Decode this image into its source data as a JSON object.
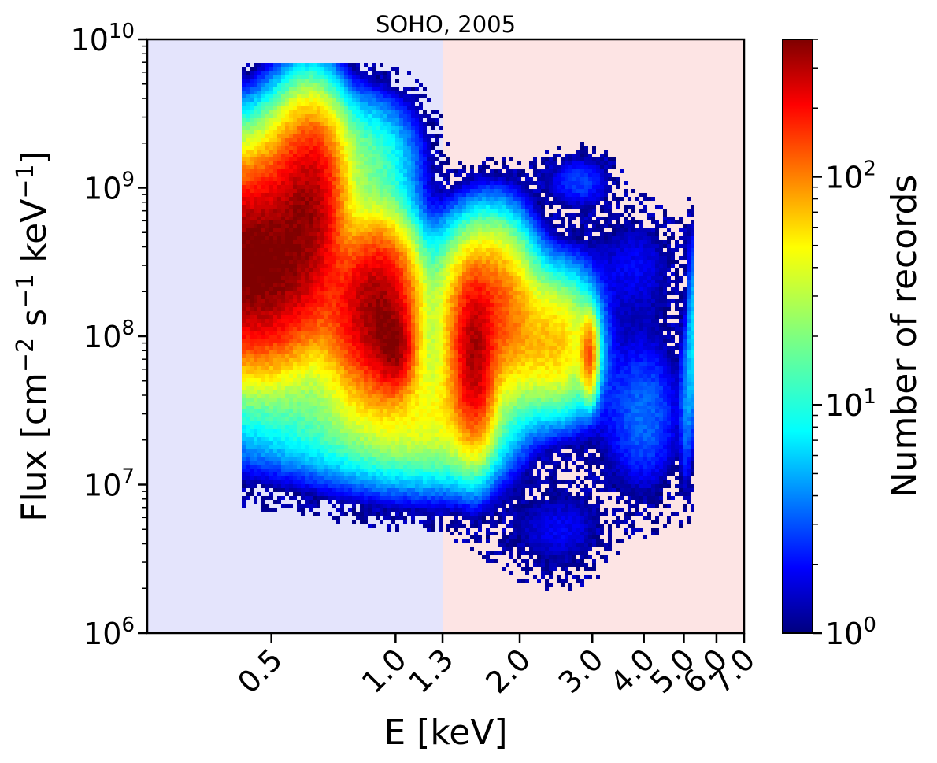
{
  "chart_data": {
    "type": "heatmap",
    "title": "SOHO, 2005",
    "xlabel": "E [keV]",
    "ylabel_parts": [
      "Flux [cm",
      "−2",
      " s",
      "−1",
      " keV",
      "−1",
      "]"
    ],
    "xlim": [
      0.25,
      7.0
    ],
    "ylim": [
      1000000,
      10000000000
    ],
    "yscale": "log",
    "x_ticks": [
      0.5,
      1.0,
      1.3,
      2.0,
      3.0,
      4.0,
      5.0,
      6.0,
      7.0
    ],
    "x_tick_labels": [
      "0.5",
      "1.0",
      "1.3",
      "2.0",
      "3.0",
      "4.0",
      "5.0",
      "6.0",
      "7.0"
    ],
    "y_ticks": [
      {
        "value": 1000000,
        "base": "10",
        "exp": "6"
      },
      {
        "value": 10000000,
        "base": "10",
        "exp": "7"
      },
      {
        "value": 100000000,
        "base": "10",
        "exp": "8"
      },
      {
        "value": 1000000000,
        "base": "10",
        "exp": "9"
      },
      {
        "value": 10000000000,
        "base": "10",
        "exp": "10"
      }
    ],
    "shaded_regions": [
      {
        "x_range": [
          0.25,
          1.3
        ],
        "color": "#e4e4fc"
      },
      {
        "x_range": [
          1.3,
          7.0
        ],
        "color": "#fde4e4"
      }
    ],
    "colorbar": {
      "label": "Number of records",
      "scale": "log",
      "range": [
        1,
        400
      ],
      "colormap": "jet",
      "ticks": [
        {
          "value": 1,
          "base": "10",
          "exp": "0"
        },
        {
          "value": 10,
          "base": "10",
          "exp": "1"
        },
        {
          "value": 100,
          "base": "10",
          "exp": "2"
        }
      ]
    },
    "density_blobs": [
      {
        "x": 0.45,
        "y": 300000000,
        "sx": 0.12,
        "sy": 0.35,
        "count": 450
      },
      {
        "x": 0.62,
        "y": 800000000,
        "sx": 0.07,
        "sy": 0.35,
        "count": 250
      },
      {
        "x": 0.9,
        "y": 150000000,
        "sx": 0.12,
        "sy": 0.3,
        "count": 350
      },
      {
        "x": 1.0,
        "y": 80000000,
        "sx": 0.06,
        "sy": 0.15,
        "count": 220
      },
      {
        "x": 1.55,
        "y": 70000000,
        "sx": 0.1,
        "sy": 0.3,
        "count": 250
      },
      {
        "x": 1.7,
        "y": 150000000,
        "sx": 0.25,
        "sy": 0.3,
        "count": 120
      },
      {
        "x": 2.4,
        "y": 90000000,
        "sx": 0.35,
        "sy": 0.25,
        "count": 60
      },
      {
        "x": 2.95,
        "y": 75000000,
        "sx": 0.08,
        "sy": 0.15,
        "count": 100
      },
      {
        "x": 1.2,
        "y": 30000000,
        "sx": 0.4,
        "sy": 0.25,
        "count": 40
      },
      {
        "x": 0.75,
        "y": 1500000000,
        "sx": 0.2,
        "sy": 0.25,
        "count": 20
      },
      {
        "x": 4.0,
        "y": 30000000,
        "sx": 0.6,
        "sy": 0.35,
        "count": 4
      },
      {
        "x": 3.8,
        "y": 300000000,
        "sx": 0.7,
        "sy": 0.25,
        "count": 2
      },
      {
        "x": 2.5,
        "y": 5000000,
        "sx": 0.5,
        "sy": 0.2,
        "count": 2
      },
      {
        "x": 5.2,
        "y": 100000000,
        "sx": 0.04,
        "sy": 0.4,
        "count": 15
      },
      {
        "x": 5.05,
        "y": 40000000,
        "sx": 0.1,
        "sy": 0.4,
        "count": 4
      },
      {
        "x": 2.8,
        "y": 1100000000,
        "sx": 0.35,
        "sy": 0.12,
        "count": 3
      }
    ]
  }
}
